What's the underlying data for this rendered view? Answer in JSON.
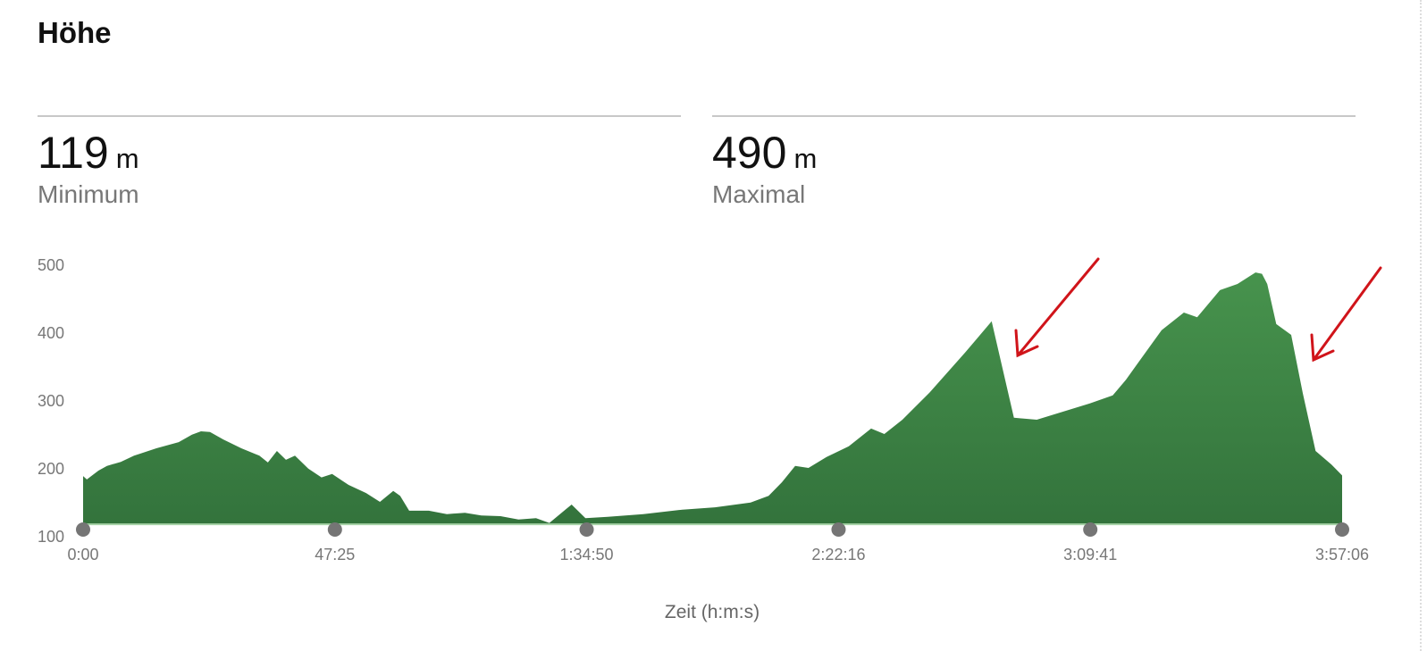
{
  "title": "Höhe",
  "stats": [
    {
      "value": "119",
      "unit": "m",
      "label": "Minimum"
    },
    {
      "value": "490",
      "unit": "m",
      "label": "Maximal"
    }
  ],
  "chart_data": {
    "type": "area",
    "title": "Höhe",
    "xlabel": "Zeit (h:m:s)",
    "ylabel": "",
    "x_unit": "minutes",
    "xlim": [
      0,
      237.1
    ],
    "ylim": [
      100,
      500
    ],
    "yticks": [
      "100",
      "200",
      "300",
      "400",
      "500"
    ],
    "xticks": [
      {
        "label": "0:00",
        "value": 0
      },
      {
        "label": "47:25",
        "value": 47.42
      },
      {
        "label": "1:34:50",
        "value": 94.83
      },
      {
        "label": "2:22:16",
        "value": 142.27
      },
      {
        "label": "3:09:41",
        "value": 189.68
      },
      {
        "label": "3:57:06",
        "value": 237.1
      }
    ],
    "color": "#3d8544",
    "annotation_color": "#d0141a",
    "annotations": [
      {
        "type": "arrow",
        "x": 175,
        "y": 350
      },
      {
        "type": "arrow",
        "x": 228,
        "y": 360
      }
    ],
    "series": [
      {
        "name": "Höhe (m)",
        "points": [
          [
            0,
            188
          ],
          [
            0.7,
            183
          ],
          [
            2.9,
            196
          ],
          [
            4.5,
            203
          ],
          [
            7.1,
            209
          ],
          [
            9.6,
            218
          ],
          [
            13.8,
            229
          ],
          [
            18,
            238
          ],
          [
            20.5,
            249
          ],
          [
            22.2,
            254
          ],
          [
            23.9,
            253
          ],
          [
            26.4,
            242
          ],
          [
            29.8,
            229
          ],
          [
            33.2,
            218
          ],
          [
            34.8,
            208
          ],
          [
            36.5,
            225
          ],
          [
            38.2,
            212
          ],
          [
            39.9,
            218
          ],
          [
            42.4,
            199
          ],
          [
            44.9,
            186
          ],
          [
            46.9,
            191
          ],
          [
            50,
            175
          ],
          [
            53.3,
            163
          ],
          [
            55.9,
            150
          ],
          [
            58.4,
            166
          ],
          [
            59.7,
            159
          ],
          [
            61.4,
            137
          ],
          [
            65.1,
            137
          ],
          [
            68.5,
            132
          ],
          [
            71.9,
            134
          ],
          [
            75,
            130
          ],
          [
            78.6,
            129
          ],
          [
            82,
            124
          ],
          [
            85.3,
            126
          ],
          [
            87.8,
            119
          ],
          [
            92,
            146
          ],
          [
            94.6,
            126
          ],
          [
            98.8,
            128
          ],
          [
            105.5,
            132
          ],
          [
            112.2,
            138
          ],
          [
            119,
            142
          ],
          [
            125.7,
            149
          ],
          [
            129.1,
            159
          ],
          [
            131.6,
            179
          ],
          [
            134.1,
            203
          ],
          [
            136.6,
            200
          ],
          [
            140,
            216
          ],
          [
            144.2,
            232
          ],
          [
            148.4,
            258
          ],
          [
            150.9,
            250
          ],
          [
            154.3,
            271
          ],
          [
            159.4,
            311
          ],
          [
            166.1,
            370
          ],
          [
            171.1,
            416
          ],
          [
            175.3,
            274
          ],
          [
            179.6,
            271
          ],
          [
            184.6,
            283
          ],
          [
            189.6,
            295
          ],
          [
            193.9,
            307
          ],
          [
            196.4,
            330
          ],
          [
            203.1,
            403
          ],
          [
            207.3,
            429
          ],
          [
            209.8,
            422
          ],
          [
            214.1,
            462
          ],
          [
            217.4,
            471
          ],
          [
            220.8,
            488
          ],
          [
            222,
            486
          ],
          [
            223,
            471
          ],
          [
            224.7,
            412
          ],
          [
            227.5,
            396
          ],
          [
            229.7,
            310
          ],
          [
            232.1,
            225
          ],
          [
            235.1,
            205
          ],
          [
            237.1,
            189
          ]
        ]
      }
    ]
  }
}
